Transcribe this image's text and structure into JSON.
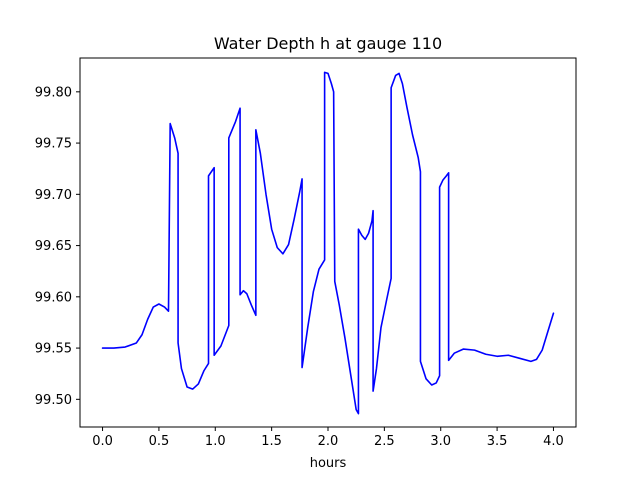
{
  "chart_data": {
    "type": "line",
    "title": "Water Depth h at gauge 110",
    "xlabel": "hours",
    "ylabel": "",
    "xlim": [
      -0.2,
      4.2
    ],
    "ylim": [
      99.473,
      99.833
    ],
    "xticks": [
      0.0,
      0.5,
      1.0,
      1.5,
      2.0,
      2.5,
      3.0,
      3.5,
      4.0
    ],
    "xtick_labels": [
      "0.0",
      "0.5",
      "1.0",
      "1.5",
      "2.0",
      "2.5",
      "3.0",
      "3.5",
      "4.0"
    ],
    "yticks": [
      99.5,
      99.55,
      99.6,
      99.65,
      99.7,
      99.75,
      99.8
    ],
    "ytick_labels": [
      "99.50",
      "99.55",
      "99.60",
      "99.65",
      "99.70",
      "99.75",
      "99.80"
    ],
    "grid": false,
    "legend": "none",
    "colors": {
      "line": "#0000ff",
      "axes": "#000000",
      "background": "#ffffff"
    },
    "series": [
      {
        "x": [
          0.0,
          0.1,
          0.2,
          0.3,
          0.35,
          0.4,
          0.45,
          0.5,
          0.55,
          0.585,
          0.6,
          0.6,
          0.64,
          0.67,
          0.67,
          0.7,
          0.75,
          0.8,
          0.85,
          0.9,
          0.94,
          0.94,
          0.99,
          0.99,
          1.05,
          1.12,
          1.12,
          1.18,
          1.22,
          1.22,
          1.25,
          1.28,
          1.32,
          1.36,
          1.36,
          1.4,
          1.45,
          1.5,
          1.55,
          1.6,
          1.65,
          1.7,
          1.75,
          1.77,
          1.77,
          1.82,
          1.87,
          1.92,
          1.97,
          1.97,
          2.0,
          2.03,
          2.05,
          2.06,
          2.1,
          2.15,
          2.2,
          2.25,
          2.27,
          2.27,
          2.3,
          2.33,
          2.36,
          2.39,
          2.4,
          2.4,
          2.43,
          2.47,
          2.52,
          2.56,
          2.56,
          2.6,
          2.63,
          2.66,
          2.7,
          2.75,
          2.8,
          2.82,
          2.82,
          2.87,
          2.92,
          2.96,
          2.99,
          2.99,
          3.02,
          3.05,
          3.07,
          3.07,
          3.12,
          3.2,
          3.3,
          3.4,
          3.5,
          3.6,
          3.7,
          3.8,
          3.85,
          3.9,
          3.95,
          4.0
        ],
        "y": [
          99.55,
          99.55,
          99.551,
          99.555,
          99.563,
          99.578,
          99.59,
          99.593,
          99.59,
          99.586,
          99.769,
          99.769,
          99.755,
          99.74,
          99.555,
          99.53,
          99.512,
          99.51,
          99.515,
          99.528,
          99.535,
          99.718,
          99.726,
          99.543,
          99.552,
          99.572,
          99.755,
          99.771,
          99.784,
          99.602,
          99.606,
          99.603,
          99.592,
          99.582,
          99.763,
          99.74,
          99.7,
          99.666,
          99.648,
          99.642,
          99.651,
          99.676,
          99.703,
          99.715,
          99.531,
          99.57,
          99.605,
          99.627,
          99.636,
          99.819,
          99.818,
          99.808,
          99.8,
          99.615,
          99.592,
          99.56,
          99.525,
          99.49,
          99.486,
          99.666,
          99.66,
          99.656,
          99.662,
          99.674,
          99.684,
          99.508,
          99.53,
          99.57,
          99.597,
          99.618,
          99.804,
          99.816,
          99.818,
          99.808,
          99.785,
          99.758,
          99.736,
          99.722,
          99.537,
          99.52,
          99.514,
          99.516,
          99.523,
          99.707,
          99.714,
          99.718,
          99.721,
          99.538,
          99.545,
          99.549,
          99.548,
          99.544,
          99.542,
          99.543,
          99.54,
          99.537,
          99.539,
          99.548,
          99.566,
          99.584
        ]
      }
    ]
  }
}
